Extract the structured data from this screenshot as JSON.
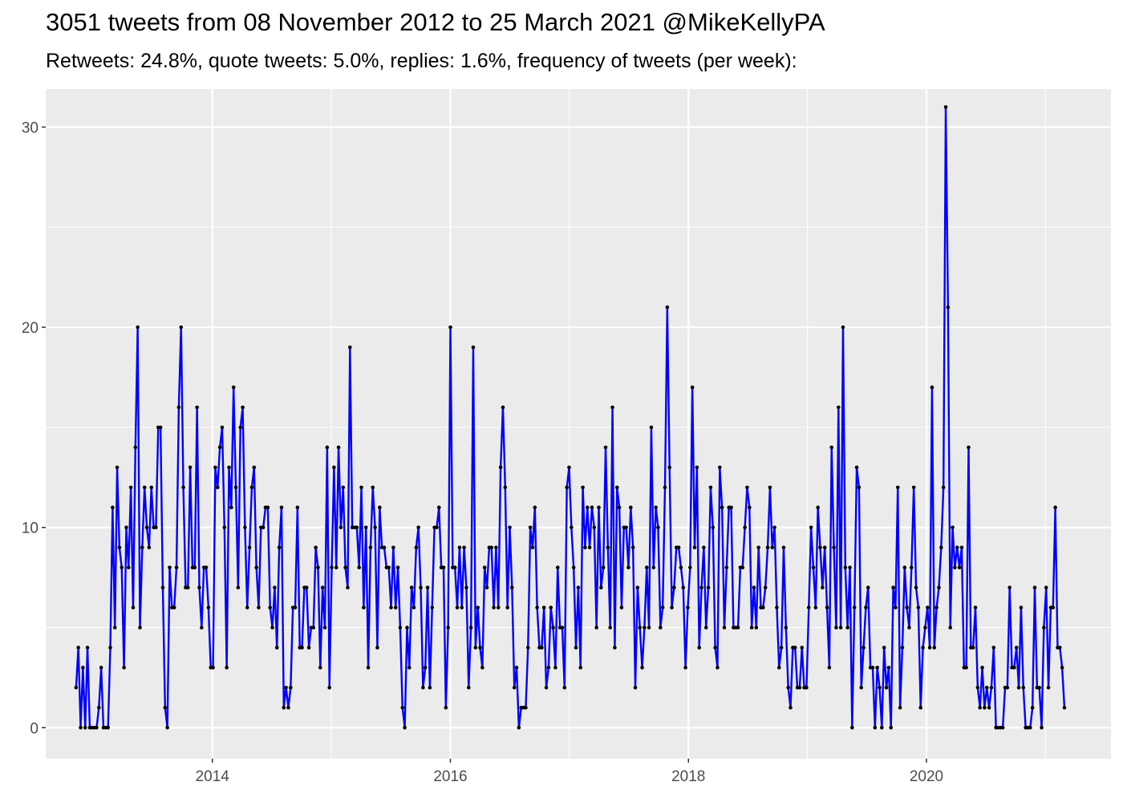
{
  "chart_data": {
    "type": "line",
    "title": "3051 tweets from 08 November 2012 to 25 March 2021 @MikeKellyPA",
    "subtitle": "Retweets: 24.8%, quote tweets: 5.0%, replies: 1.6%, frequency of tweets (per week):",
    "xlabel": "",
    "ylabel": "",
    "xlim": [
      2012.6,
      2021.55
    ],
    "ylim": [
      -1.55,
      31.9
    ],
    "x_ticks": [
      2014,
      2016,
      2018,
      2020
    ],
    "x_tick_labels": [
      "2014",
      "2016",
      "2018",
      "2020"
    ],
    "y_ticks": [
      0,
      10,
      20,
      30
    ],
    "y_tick_labels": [
      "0",
      "10",
      "20",
      "30"
    ],
    "grid": true,
    "colors": {
      "line": "#0000ff",
      "point": "#000000",
      "panel": "#ebebeb",
      "grid": "#ffffff"
    },
    "series": [
      {
        "x_start": 2012.855,
        "x_step": 0.019178,
        "values": [
          2,
          4,
          0,
          3,
          0,
          4,
          0,
          0,
          0,
          0,
          1,
          3,
          0,
          0,
          0,
          4,
          11,
          5,
          13,
          9,
          8,
          3,
          10,
          8,
          12,
          6,
          14,
          20,
          5,
          9,
          12,
          10,
          9,
          12,
          10,
          10,
          15,
          15,
          7,
          1,
          0,
          8,
          6,
          6,
          8,
          16,
          20,
          12,
          7,
          7,
          13,
          8,
          8,
          16,
          7,
          5,
          8,
          8,
          6,
          3,
          3,
          13,
          12,
          14,
          15,
          10,
          3,
          13,
          11,
          17,
          12,
          7,
          15,
          16,
          10,
          6,
          9,
          12,
          13,
          8,
          6,
          10,
          10,
          11,
          11,
          6,
          5,
          7,
          4,
          9,
          11,
          1,
          2,
          1,
          2,
          6,
          6,
          11,
          4,
          4,
          7,
          7,
          4,
          5,
          5,
          9,
          8,
          3,
          7,
          5,
          14,
          2,
          8,
          13,
          8,
          14,
          10,
          12,
          8,
          7,
          19,
          10,
          10,
          10,
          8,
          12,
          6,
          10,
          3,
          9,
          12,
          10,
          4,
          11,
          9,
          9,
          8,
          8,
          6,
          9,
          6,
          8,
          5,
          1,
          0,
          5,
          3,
          7,
          6,
          9,
          10,
          7,
          2,
          3,
          7,
          2,
          6,
          10,
          10,
          11,
          8,
          8,
          1,
          5,
          20,
          8,
          8,
          6,
          9,
          6,
          9,
          7,
          2,
          5,
          19,
          4,
          6,
          4,
          3,
          8,
          7,
          9,
          9,
          6,
          9,
          6,
          13,
          16,
          12,
          6,
          10,
          7,
          2,
          3,
          0,
          1,
          1,
          1,
          4,
          10,
          9,
          11,
          6,
          4,
          4,
          6,
          2,
          3,
          6,
          5,
          3,
          8,
          5,
          5,
          2,
          12,
          13,
          10,
          8,
          4,
          7,
          3,
          12,
          9,
          11,
          9,
          11,
          10,
          5,
          11,
          7,
          8,
          14,
          9,
          5,
          16,
          4,
          12,
          11,
          6,
          10,
          10,
          8,
          11,
          9,
          2,
          7,
          5,
          3,
          5,
          8,
          5,
          15,
          8,
          11,
          10,
          5,
          6,
          12,
          21,
          13,
          6,
          7,
          9,
          9,
          8,
          7,
          3,
          6,
          8,
          17,
          9,
          13,
          4,
          7,
          9,
          5,
          7,
          12,
          10,
          4,
          3,
          13,
          11,
          5,
          8,
          11,
          11,
          5,
          5,
          5,
          8,
          8,
          10,
          12,
          11,
          5,
          7,
          5,
          9,
          6,
          6,
          7,
          9,
          12,
          9,
          10,
          6,
          3,
          4,
          9,
          5,
          2,
          1,
          4,
          4,
          2,
          2,
          4,
          2,
          2,
          6,
          10,
          8,
          6,
          11,
          9,
          7,
          9,
          6,
          3,
          14,
          9,
          5,
          16,
          5,
          20,
          8,
          5,
          8,
          0,
          6,
          13,
          12,
          2,
          4,
          6,
          7,
          3,
          3,
          0,
          3,
          2,
          0,
          4,
          2,
          3,
          0,
          7,
          6,
          12,
          1,
          4,
          8,
          6,
          5,
          8,
          12,
          7,
          6,
          1,
          4,
          5,
          6,
          4,
          17,
          4,
          6,
          7,
          9,
          12,
          31,
          21,
          5,
          10,
          8,
          9,
          8,
          9,
          3,
          3,
          14,
          4,
          4,
          6,
          2,
          1,
          3,
          1,
          2,
          1,
          2,
          4,
          0,
          0,
          0,
          0,
          2,
          2,
          7,
          3,
          3,
          4,
          2,
          6,
          2,
          0,
          0,
          0,
          1,
          7,
          2,
          2,
          0,
          5,
          7,
          2,
          6,
          6,
          11,
          4,
          4,
          3,
          1
        ]
      }
    ]
  }
}
